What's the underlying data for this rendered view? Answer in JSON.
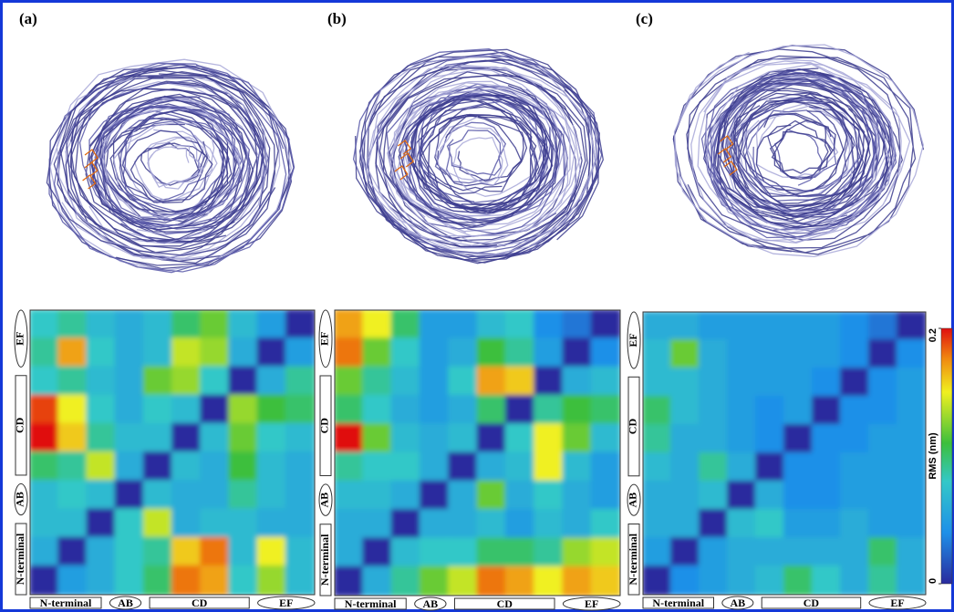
{
  "chart_data": [
    {
      "type": "heatmap",
      "title": "(a)",
      "x_labels": [
        "N-terminal",
        "AB",
        "CD",
        "EF"
      ],
      "y_labels": [
        "N-terminal",
        "AB",
        "CD",
        "EF"
      ],
      "values": [
        [
          0.08,
          0.09,
          0.07,
          0.06,
          0.07,
          0.1,
          0.12,
          0.07,
          0.05,
          0.0
        ],
        [
          0.09,
          0.17,
          0.08,
          0.06,
          0.07,
          0.14,
          0.13,
          0.06,
          0.0,
          0.05
        ],
        [
          0.08,
          0.09,
          0.07,
          0.06,
          0.12,
          0.13,
          0.08,
          0.0,
          0.06,
          0.09
        ],
        [
          0.19,
          0.15,
          0.08,
          0.06,
          0.08,
          0.07,
          0.0,
          0.13,
          0.11,
          0.1
        ],
        [
          0.2,
          0.16,
          0.09,
          0.07,
          0.07,
          0.0,
          0.07,
          0.12,
          0.08,
          0.07
        ],
        [
          0.1,
          0.09,
          0.14,
          0.06,
          0.0,
          0.07,
          0.06,
          0.11,
          0.07,
          0.06
        ],
        [
          0.07,
          0.08,
          0.07,
          0.0,
          0.07,
          0.06,
          0.06,
          0.09,
          0.07,
          0.06
        ],
        [
          0.07,
          0.07,
          0.0,
          0.08,
          0.14,
          0.06,
          0.07,
          0.07,
          0.06,
          0.06
        ],
        [
          0.06,
          0.0,
          0.06,
          0.08,
          0.09,
          0.16,
          0.18,
          0.07,
          0.15,
          0.07
        ],
        [
          0.0,
          0.05,
          0.06,
          0.08,
          0.1,
          0.18,
          0.17,
          0.08,
          0.13,
          0.07
        ]
      ]
    },
    {
      "type": "heatmap",
      "title": "(b)",
      "x_labels": [
        "N-terminal",
        "AB",
        "CD",
        "EF"
      ],
      "y_labels": [
        "N-terminal",
        "AB",
        "CD",
        "EF"
      ],
      "values": [
        [
          0.17,
          0.15,
          0.1,
          0.05,
          0.05,
          0.07,
          0.08,
          0.04,
          0.03,
          0.0
        ],
        [
          0.18,
          0.12,
          0.08,
          0.05,
          0.06,
          0.11,
          0.09,
          0.05,
          0.0,
          0.04
        ],
        [
          0.12,
          0.09,
          0.07,
          0.05,
          0.08,
          0.17,
          0.16,
          0.0,
          0.06,
          0.07
        ],
        [
          0.1,
          0.08,
          0.06,
          0.05,
          0.06,
          0.1,
          0.0,
          0.09,
          0.11,
          0.1
        ],
        [
          0.2,
          0.12,
          0.07,
          0.06,
          0.07,
          0.0,
          0.08,
          0.15,
          0.12,
          0.07
        ],
        [
          0.09,
          0.08,
          0.08,
          0.06,
          0.0,
          0.06,
          0.07,
          0.15,
          0.07,
          0.05
        ],
        [
          0.07,
          0.07,
          0.06,
          0.0,
          0.06,
          0.12,
          0.06,
          0.08,
          0.06,
          0.05
        ],
        [
          0.06,
          0.06,
          0.0,
          0.06,
          0.06,
          0.07,
          0.05,
          0.07,
          0.06,
          0.08
        ],
        [
          0.06,
          0.0,
          0.07,
          0.08,
          0.08,
          0.1,
          0.1,
          0.09,
          0.13,
          0.14
        ],
        [
          0.0,
          0.06,
          0.09,
          0.12,
          0.14,
          0.18,
          0.17,
          0.15,
          0.17,
          0.16
        ]
      ]
    },
    {
      "type": "heatmap",
      "title": "(c)",
      "x_labels": [
        "N-terminal",
        "AB",
        "CD",
        "EF"
      ],
      "y_labels": [
        "N-terminal",
        "AB",
        "CD",
        "EF"
      ],
      "values": [
        [
          0.06,
          0.06,
          0.05,
          0.05,
          0.05,
          0.05,
          0.05,
          0.04,
          0.03,
          0.0
        ],
        [
          0.07,
          0.12,
          0.06,
          0.05,
          0.05,
          0.05,
          0.05,
          0.04,
          0.0,
          0.04
        ],
        [
          0.07,
          0.07,
          0.06,
          0.05,
          0.05,
          0.05,
          0.04,
          0.0,
          0.04,
          0.05
        ],
        [
          0.1,
          0.07,
          0.06,
          0.05,
          0.04,
          0.05,
          0.0,
          0.04,
          0.04,
          0.05
        ],
        [
          0.09,
          0.06,
          0.06,
          0.05,
          0.04,
          0.0,
          0.04,
          0.04,
          0.05,
          0.05
        ],
        [
          0.07,
          0.06,
          0.09,
          0.06,
          0.0,
          0.04,
          0.04,
          0.05,
          0.05,
          0.05
        ],
        [
          0.06,
          0.06,
          0.07,
          0.0,
          0.06,
          0.04,
          0.04,
          0.05,
          0.05,
          0.05
        ],
        [
          0.06,
          0.06,
          0.0,
          0.07,
          0.08,
          0.05,
          0.05,
          0.06,
          0.05,
          0.05
        ],
        [
          0.05,
          0.0,
          0.05,
          0.06,
          0.06,
          0.06,
          0.06,
          0.06,
          0.1,
          0.06
        ],
        [
          0.0,
          0.04,
          0.05,
          0.06,
          0.07,
          0.1,
          0.08,
          0.06,
          0.09,
          0.06
        ]
      ]
    }
  ],
  "colorbar": {
    "label": "RMS (nm)",
    "lim": [
      0,
      0.2
    ],
    "ticks": [
      0,
      0.2
    ]
  }
}
